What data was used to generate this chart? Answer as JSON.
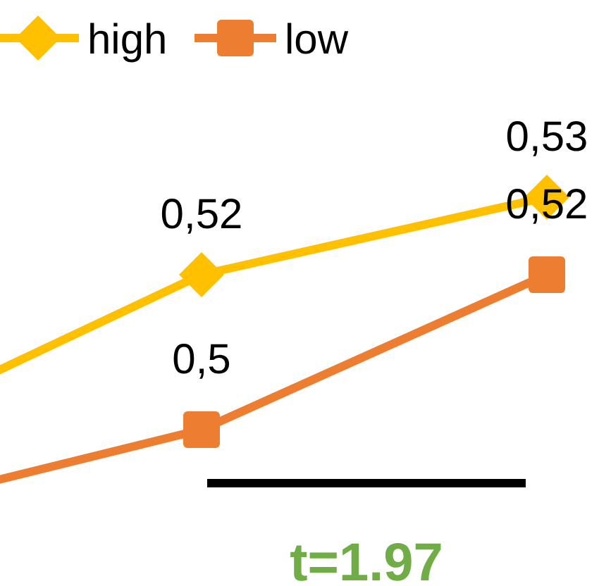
{
  "chart_data": {
    "type": "line",
    "categories": [
      null,
      null,
      null
    ],
    "legend": "top left",
    "annotations": [
      "t=1.97"
    ],
    "series": [
      {
        "name": "high",
        "color": "#ffc000",
        "marker": "diamond",
        "values": [
          0.499,
          0.52,
          0.53
        ],
        "value_labels": [
          null,
          "0,52",
          "0,53"
        ]
      },
      {
        "name": "low",
        "color": "#ed7d31",
        "marker": "square",
        "values": [
          0.489,
          0.5,
          0.52
        ],
        "value_labels": [
          null,
          "0,5",
          "0,52"
        ]
      }
    ]
  }
}
